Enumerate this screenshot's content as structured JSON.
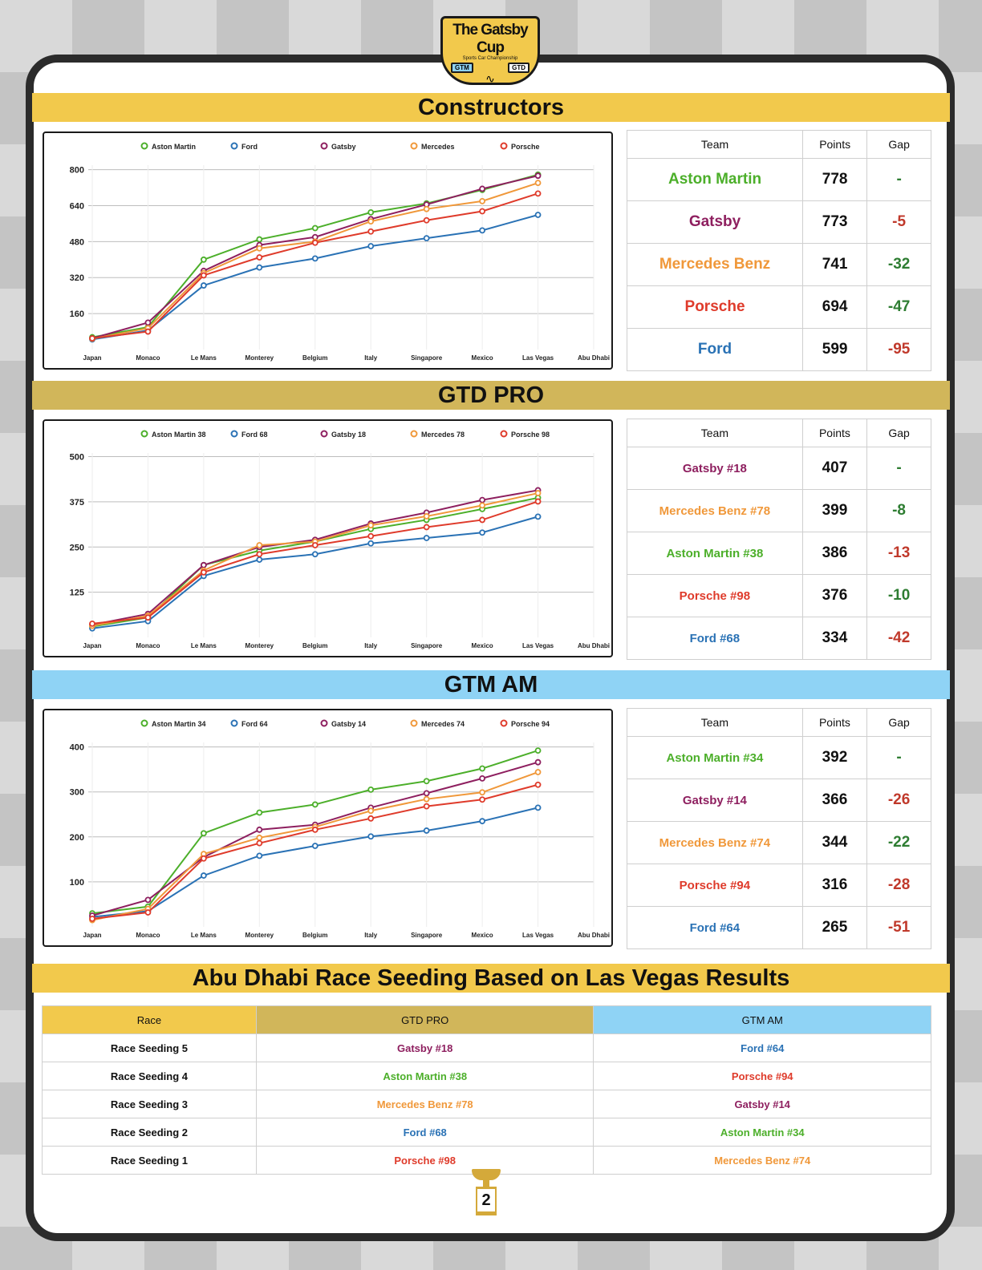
{
  "logo": {
    "title": "The Gatsby Cup",
    "subtitle": "Sports Car Championship",
    "badge_gtm": "GTM",
    "badge_gtd": "GTD"
  },
  "sections": {
    "constructors": "Constructors",
    "gtd_pro": "GTD PRO",
    "gtm_am": "GTM AM",
    "seeding": "Abu Dhabi Race Seeding Based on Las Vegas Results"
  },
  "colors": {
    "aston": "#4caf2a",
    "ford": "#2a72b5",
    "gatsby": "#8e1f5f",
    "mercedes": "#f0983a",
    "porsche": "#df3b2b",
    "gap_red": "#c0392b",
    "gap_green": "#2e7d32"
  },
  "chart_data": [
    {
      "type": "line",
      "id": "constructors",
      "categories": [
        "Japan",
        "Monaco",
        "Le Mans",
        "Monterey",
        "Belgium",
        "Italy",
        "Singapore",
        "Mexico",
        "Las Vegas",
        "Abu Dhabi"
      ],
      "ylim": [
        0,
        820
      ],
      "yticks": [
        160,
        320,
        480,
        640,
        800
      ],
      "legend": "top",
      "grid": true,
      "series": [
        {
          "name": "Aston Martin",
          "color": "#4caf2a",
          "values": [
            55,
            100,
            400,
            490,
            540,
            610,
            650,
            710,
            778,
            null
          ]
        },
        {
          "name": "Ford",
          "color": "#2a72b5",
          "values": [
            45,
            85,
            285,
            365,
            405,
            460,
            495,
            530,
            599,
            null
          ]
        },
        {
          "name": "Gatsby",
          "color": "#8e1f5f",
          "values": [
            50,
            120,
            350,
            465,
            500,
            580,
            645,
            715,
            773,
            null
          ]
        },
        {
          "name": "Mercedes",
          "color": "#f0983a",
          "values": [
            48,
            95,
            340,
            450,
            480,
            570,
            625,
            660,
            741,
            null
          ]
        },
        {
          "name": "Porsche",
          "color": "#df3b2b",
          "values": [
            50,
            80,
            330,
            410,
            475,
            525,
            575,
            615,
            694,
            null
          ]
        }
      ]
    },
    {
      "type": "line",
      "id": "gtd_pro",
      "categories": [
        "Japan",
        "Monaco",
        "Le Mans",
        "Monterey",
        "Belgium",
        "Italy",
        "Singapore",
        "Mexico",
        "Las Vegas",
        "Abu Dhabi"
      ],
      "ylim": [
        0,
        510
      ],
      "yticks": [
        125,
        250,
        375,
        500
      ],
      "legend": "top",
      "grid": true,
      "series": [
        {
          "name": "Aston Martin 38",
          "color": "#4caf2a",
          "values": [
            30,
            55,
            200,
            240,
            265,
            300,
            325,
            355,
            386,
            null
          ]
        },
        {
          "name": "Ford 68",
          "color": "#2a72b5",
          "values": [
            25,
            45,
            170,
            215,
            230,
            260,
            275,
            290,
            334,
            null
          ]
        },
        {
          "name": "Gatsby 18",
          "color": "#8e1f5f",
          "values": [
            35,
            65,
            200,
            250,
            270,
            315,
            345,
            380,
            407,
            null
          ]
        },
        {
          "name": "Mercedes 78",
          "color": "#f0983a",
          "values": [
            32,
            60,
            185,
            255,
            265,
            310,
            335,
            365,
            399,
            null
          ]
        },
        {
          "name": "Porsche 98",
          "color": "#df3b2b",
          "values": [
            38,
            55,
            180,
            230,
            255,
            280,
            305,
            325,
            376,
            null
          ]
        }
      ]
    },
    {
      "type": "line",
      "id": "gtm_am",
      "categories": [
        "Japan",
        "Monaco",
        "Le Mans",
        "Monterey",
        "Belgium",
        "Italy",
        "Singapore",
        "Mexico",
        "Las Vegas",
        "Abu Dhabi"
      ],
      "ylim": [
        0,
        410
      ],
      "yticks": [
        100,
        200,
        300,
        400
      ],
      "legend": "top",
      "grid": true,
      "series": [
        {
          "name": "Aston Martin 34",
          "color": "#4caf2a",
          "values": [
            30,
            45,
            208,
            254,
            272,
            305,
            324,
            352,
            392,
            null
          ]
        },
        {
          "name": "Ford 64",
          "color": "#2a72b5",
          "values": [
            22,
            35,
            114,
            158,
            180,
            201,
            214,
            235,
            265,
            null
          ]
        },
        {
          "name": "Gatsby 14",
          "color": "#8e1f5f",
          "values": [
            25,
            60,
            155,
            216,
            227,
            265,
            297,
            330,
            366,
            null
          ]
        },
        {
          "name": "Mercedes 74",
          "color": "#f0983a",
          "values": [
            15,
            40,
            162,
            198,
            222,
            258,
            284,
            299,
            344,
            null
          ]
        },
        {
          "name": "Porsche 94",
          "color": "#df3b2b",
          "values": [
            18,
            32,
            152,
            186,
            216,
            241,
            268,
            283,
            316,
            null
          ]
        }
      ]
    }
  ],
  "standings_headers": {
    "team": "Team",
    "points": "Points",
    "gap": "Gap"
  },
  "standings": {
    "constructors": [
      {
        "team": "Aston Martin",
        "points": "778",
        "gap": "-",
        "team_color": "#4caf2a",
        "gap_color": "#2e7d32"
      },
      {
        "team": "Gatsby",
        "points": "773",
        "gap": "-5",
        "team_color": "#8e1f5f",
        "gap_color": "#c0392b"
      },
      {
        "team": "Mercedes Benz",
        "points": "741",
        "gap": "-32",
        "team_color": "#f0983a",
        "gap_color": "#2e7d32"
      },
      {
        "team": "Porsche",
        "points": "694",
        "gap": "-47",
        "team_color": "#df3b2b",
        "gap_color": "#2e7d32"
      },
      {
        "team": "Ford",
        "points": "599",
        "gap": "-95",
        "team_color": "#2a72b5",
        "gap_color": "#c0392b"
      }
    ],
    "gtd_pro": [
      {
        "team": "Gatsby #18",
        "points": "407",
        "gap": "-",
        "team_color": "#8e1f5f",
        "gap_color": "#2e7d32"
      },
      {
        "team": "Mercedes Benz #78",
        "points": "399",
        "gap": "-8",
        "team_color": "#f0983a",
        "gap_color": "#2e7d32"
      },
      {
        "team": "Aston Martin #38",
        "points": "386",
        "gap": "-13",
        "team_color": "#4caf2a",
        "gap_color": "#c0392b"
      },
      {
        "team": "Porsche #98",
        "points": "376",
        "gap": "-10",
        "team_color": "#df3b2b",
        "gap_color": "#2e7d32"
      },
      {
        "team": "Ford #68",
        "points": "334",
        "gap": "-42",
        "team_color": "#2a72b5",
        "gap_color": "#c0392b"
      }
    ],
    "gtm_am": [
      {
        "team": "Aston Martin #34",
        "points": "392",
        "gap": "-",
        "team_color": "#4caf2a",
        "gap_color": "#2e7d32"
      },
      {
        "team": "Gatsby #14",
        "points": "366",
        "gap": "-26",
        "team_color": "#8e1f5f",
        "gap_color": "#c0392b"
      },
      {
        "team": "Mercedes Benz #74",
        "points": "344",
        "gap": "-22",
        "team_color": "#f0983a",
        "gap_color": "#2e7d32"
      },
      {
        "team": "Porsche #94",
        "points": "316",
        "gap": "-28",
        "team_color": "#df3b2b",
        "gap_color": "#c0392b"
      },
      {
        "team": "Ford #64",
        "points": "265",
        "gap": "-51",
        "team_color": "#2a72b5",
        "gap_color": "#c0392b"
      }
    ]
  },
  "seeding": {
    "headers": {
      "race": "Race",
      "pro": "GTD PRO",
      "am": "GTM AM"
    },
    "rows": [
      {
        "race": "Race Seeding 5",
        "pro": "Gatsby #18",
        "pro_color": "#8e1f5f",
        "am": "Ford #64",
        "am_color": "#2a72b5"
      },
      {
        "race": "Race Seeding 4",
        "pro": "Aston Martin #38",
        "pro_color": "#4caf2a",
        "am": "Porsche #94",
        "am_color": "#df3b2b"
      },
      {
        "race": "Race Seeding 3",
        "pro": "Mercedes Benz #78",
        "pro_color": "#f0983a",
        "am": "Gatsby #14",
        "am_color": "#8e1f5f"
      },
      {
        "race": "Race Seeding 2",
        "pro": "Ford #68",
        "pro_color": "#2a72b5",
        "am": "Aston Martin #34",
        "am_color": "#4caf2a"
      },
      {
        "race": "Race Seeding 1",
        "pro": "Porsche #98",
        "pro_color": "#df3b2b",
        "am": "Mercedes Benz #74",
        "am_color": "#f0983a"
      }
    ]
  },
  "page_number": "2"
}
